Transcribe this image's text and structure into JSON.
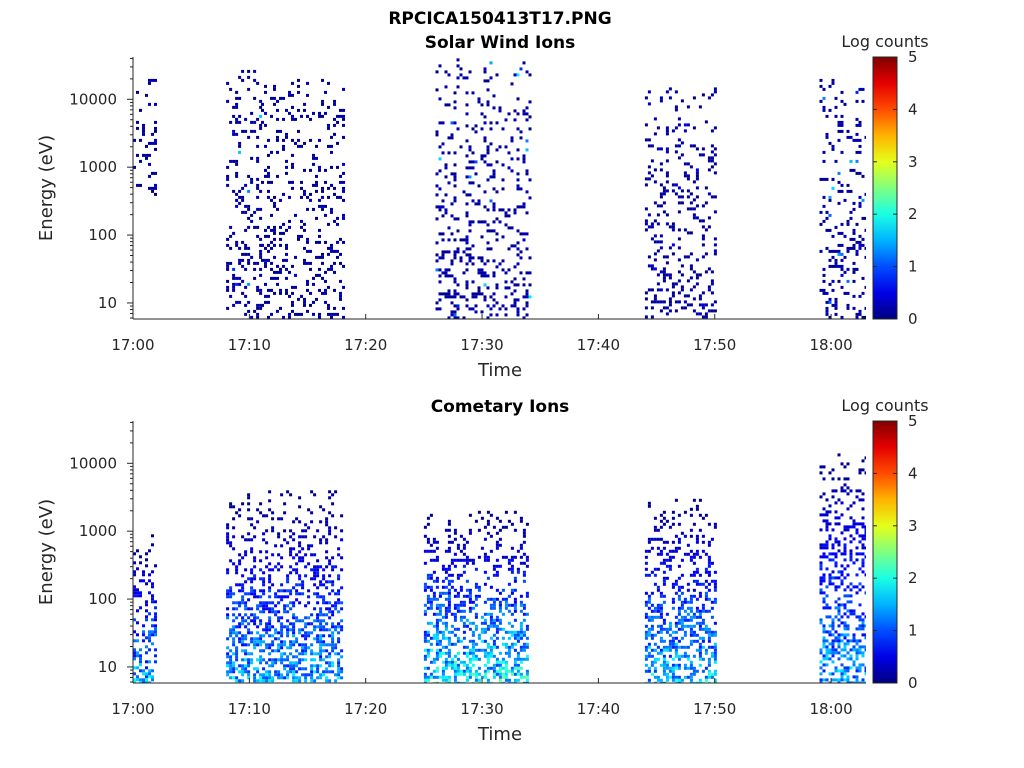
{
  "figure_title": "RPCICA150413T17.PNG",
  "chart_data": [
    {
      "type": "heatmap",
      "title": "Solar Wind Ions",
      "xlabel": "Time",
      "ylabel": "Energy (eV)",
      "yscale": "log",
      "ylim": [
        5.8,
        42000
      ],
      "xlim": [
        "17:00",
        "18:03"
      ],
      "x_ticks": [
        "17:00",
        "17:10",
        "17:20",
        "17:30",
        "17:40",
        "17:50",
        "18:00"
      ],
      "y_ticks": [
        "10",
        "100",
        "1000",
        "10000"
      ],
      "colorbar": {
        "label": "Log counts",
        "range": [
          0,
          5
        ],
        "ticks": [
          "0",
          "1",
          "2",
          "3",
          "4",
          "5"
        ],
        "colormap": "jet"
      },
      "activity_bursts": [
        {
          "start": "17:00",
          "end": "17:02",
          "energy_range": [
            400,
            20000
          ],
          "peak_log_counts": 0.3
        },
        {
          "start": "17:08",
          "end": "17:11",
          "energy_range": [
            6,
            30000
          ],
          "peak_log_counts": 1.8
        },
        {
          "start": "17:11",
          "end": "17:18",
          "energy_range": [
            6,
            20000
          ],
          "peak_log_counts": 0.5
        },
        {
          "start": "17:26",
          "end": "17:34",
          "energy_range": [
            6,
            40000
          ],
          "peak_log_counts": 1.8
        },
        {
          "start": "17:44",
          "end": "17:50",
          "energy_range": [
            6,
            15000
          ],
          "peak_log_counts": 0.6
        },
        {
          "start": "17:59",
          "end": "18:03",
          "energy_range": [
            6,
            20000
          ],
          "peak_log_counts": 1.8
        }
      ]
    },
    {
      "type": "heatmap",
      "title": "Cometary Ions",
      "xlabel": "Time",
      "ylabel": "Energy (eV)",
      "yscale": "log",
      "ylim": [
        5.8,
        42000
      ],
      "xlim": [
        "17:00",
        "18:03"
      ],
      "x_ticks": [
        "17:00",
        "17:10",
        "17:20",
        "17:30",
        "17:40",
        "17:50",
        "18:00"
      ],
      "y_ticks": [
        "10",
        "100",
        "1000",
        "10000"
      ],
      "colorbar": {
        "label": "Log counts",
        "range": [
          0,
          5
        ],
        "ticks": [
          "0",
          "1",
          "2",
          "3",
          "4",
          "5"
        ],
        "colormap": "jet"
      },
      "activity_bursts": [
        {
          "start": "17:00",
          "end": "17:02",
          "energy_range": [
            6,
            900
          ],
          "peak_log_counts": 2.0
        },
        {
          "start": "17:08",
          "end": "17:18",
          "energy_range": [
            6,
            4000
          ],
          "peak_log_counts": 2.0
        },
        {
          "start": "17:25",
          "end": "17:34",
          "energy_range": [
            6,
            2000
          ],
          "peak_log_counts": 2.5
        },
        {
          "start": "17:44",
          "end": "17:50",
          "energy_range": [
            6,
            3000
          ],
          "peak_log_counts": 2.2
        },
        {
          "start": "17:59",
          "end": "18:03",
          "energy_range": [
            6,
            14000
          ],
          "peak_log_counts": 2.0
        }
      ]
    }
  ]
}
